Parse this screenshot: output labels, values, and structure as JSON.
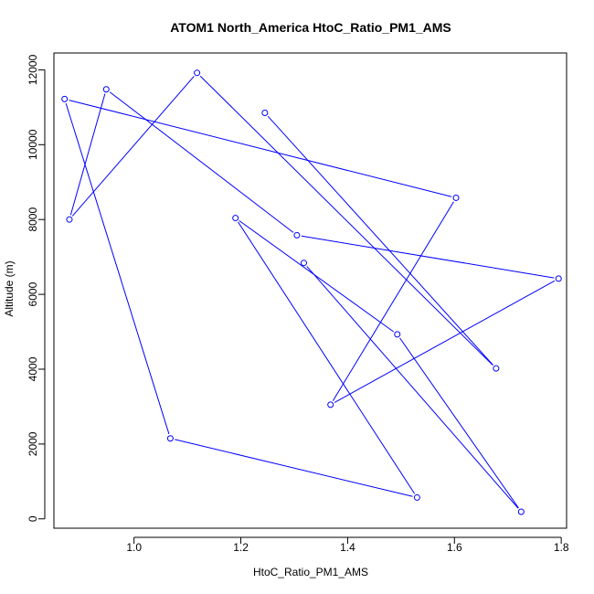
{
  "chart_data": {
    "type": "line",
    "title": "ATOM1 North_America HtoC_Ratio_PM1_AMS",
    "xlabel": "HtoC_Ratio_PM1_AMS",
    "ylabel": "Altitude (m)",
    "xlim": [
      0.85,
      1.81
    ],
    "ylim": [
      -250,
      12450
    ],
    "xticks": [
      1.0,
      1.2,
      1.4,
      1.6,
      1.8
    ],
    "xtick_labels": [
      "1.0",
      "1.2",
      "1.4",
      "1.6",
      "1.8"
    ],
    "yticks": [
      0,
      2000,
      4000,
      6000,
      8000,
      10000,
      12000
    ],
    "ytick_labels": [
      "0",
      "2000",
      "4000",
      "6000",
      "8000",
      "10000",
      "12000"
    ],
    "grid": false,
    "colors": {
      "series": "#0000ff",
      "axis": "#000000"
    },
    "series": [
      {
        "marker": "open-circle",
        "points": [
          {
            "x": 1.245,
            "y": 10850
          },
          {
            "x": 1.678,
            "y": 4020
          },
          {
            "x": 1.118,
            "y": 11920
          },
          {
            "x": 0.879,
            "y": 8000
          },
          {
            "x": 0.948,
            "y": 11480
          },
          {
            "x": 1.305,
            "y": 7580
          },
          {
            "x": 1.795,
            "y": 6420
          },
          {
            "x": 1.368,
            "y": 3050
          },
          {
            "x": 1.603,
            "y": 8580
          },
          {
            "x": 0.87,
            "y": 11220
          },
          {
            "x": 1.068,
            "y": 2150
          },
          {
            "x": 1.53,
            "y": 570
          },
          {
            "x": 1.19,
            "y": 8040
          },
          {
            "x": 1.493,
            "y": 4930
          },
          {
            "x": 1.725,
            "y": 190
          },
          {
            "x": 1.318,
            "y": 6840
          }
        ]
      }
    ]
  }
}
